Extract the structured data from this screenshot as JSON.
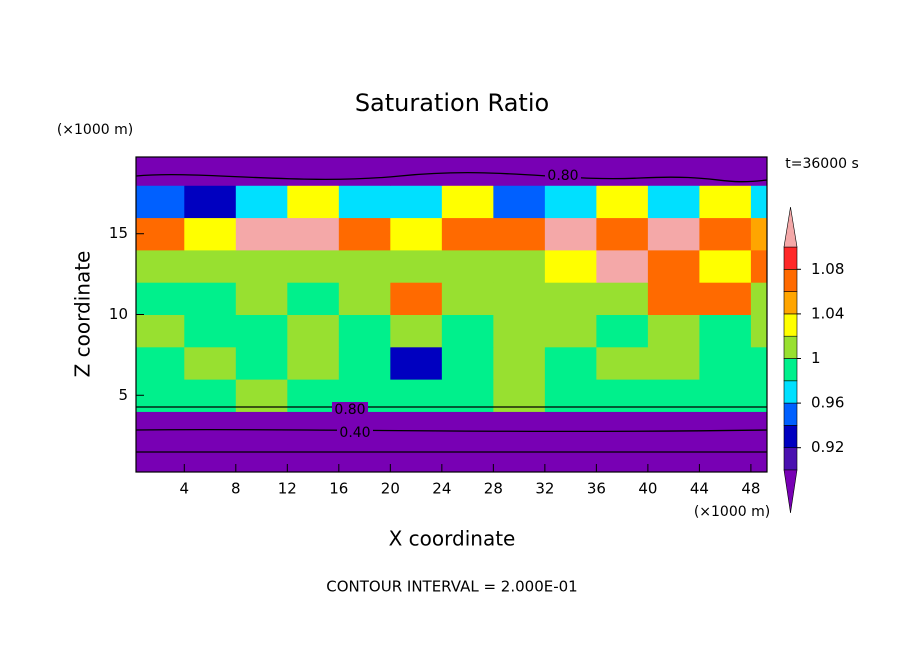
{
  "chart_data": {
    "type": "contour",
    "title": "Saturation Ratio",
    "x_label": "X coordinate",
    "y_label": "Z coordinate",
    "x_unit": "(×1000 m)",
    "y_unit": "(×1000 m)",
    "time_label": "t=36000 s",
    "footer": "CONTOUR INTERVAL = 2.000E-01",
    "contour_labels": [
      "0.80",
      "0.80",
      "0.40"
    ],
    "xlim": [
      0.25,
      49.25
    ],
    "ylim": [
      0.25,
      19.75
    ],
    "xticks": [
      4,
      8,
      12,
      16,
      20,
      24,
      28,
      32,
      36,
      40,
      44,
      48
    ],
    "yticks": [
      5,
      10,
      15
    ],
    "x": [
      2,
      6,
      10,
      14,
      18,
      22,
      26,
      30,
      34,
      38,
      42,
      46,
      50
    ],
    "y": [
      1,
      3,
      5,
      7,
      9,
      11,
      13,
      15,
      17,
      19
    ],
    "z": [
      [
        0.5,
        0.5,
        0.5,
        0.5,
        0.5,
        0.5,
        0.5,
        0.5,
        0.5,
        0.5,
        0.5,
        0.5,
        0.5
      ],
      [
        0.7,
        0.7,
        0.7,
        0.7,
        0.7,
        0.7,
        0.7,
        0.7,
        0.7,
        0.7,
        0.7,
        0.7,
        0.7
      ],
      [
        0.99,
        0.99,
        1.01,
        0.99,
        0.99,
        0.99,
        0.99,
        1.01,
        0.99,
        0.99,
        0.99,
        0.99,
        0.99
      ],
      [
        0.99,
        1.01,
        0.99,
        1.01,
        0.99,
        0.93,
        0.99,
        1.01,
        0.99,
        1.01,
        1.01,
        0.99,
        0.99
      ],
      [
        1.01,
        0.99,
        0.99,
        1.01,
        0.99,
        1.01,
        0.99,
        1.01,
        1.01,
        0.99,
        1.01,
        0.99,
        1.01
      ],
      [
        0.99,
        0.99,
        1.01,
        0.99,
        1.01,
        1.07,
        1.01,
        1.01,
        1.01,
        1.01,
        1.07,
        1.07,
        1.01
      ],
      [
        1.01,
        1.01,
        1.01,
        1.01,
        1.01,
        1.01,
        1.01,
        1.01,
        1.03,
        1.12,
        1.07,
        1.03,
        1.07
      ],
      [
        1.07,
        1.03,
        1.12,
        1.12,
        1.07,
        1.03,
        1.07,
        1.07,
        1.12,
        1.07,
        1.12,
        1.07,
        1.05
      ],
      [
        0.95,
        0.93,
        0.97,
        1.03,
        0.97,
        0.97,
        1.03,
        0.95,
        0.97,
        1.03,
        0.97,
        1.03,
        0.97
      ],
      [
        0.85,
        0.85,
        0.85,
        0.85,
        0.85,
        0.85,
        0.85,
        0.85,
        0.85,
        0.85,
        0.85,
        0.85,
        0.85
      ]
    ],
    "levels": [
      0.9,
      0.92,
      0.94,
      0.96,
      0.98,
      1,
      1.02,
      1.04,
      1.06,
      1.08,
      1.1
    ],
    "colors": [
      "#4a10b0",
      "#0000c0",
      "#0060ff",
      "#00e0ff",
      "#00f08c",
      "#98e030",
      "#ffff00",
      "#ffa500",
      "#ff6a00",
      "#ff2828"
    ],
    "under_color": "#7800b4",
    "over_color": "#f4a8a8",
    "colorbar_ticks": [
      0.92,
      0.96,
      1,
      1.04,
      1.08
    ]
  }
}
